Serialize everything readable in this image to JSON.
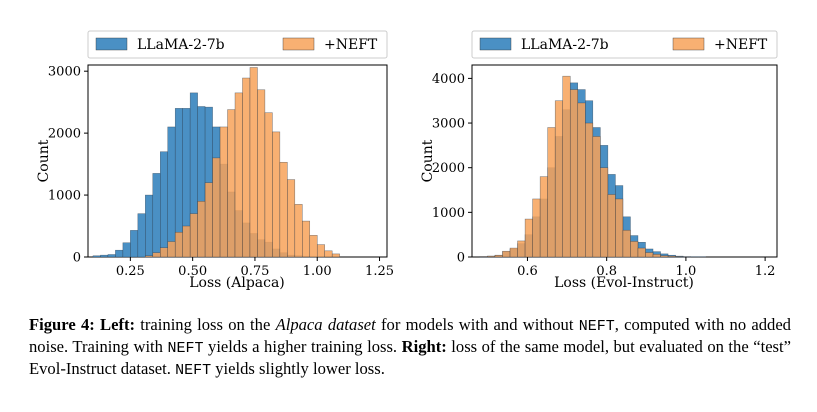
{
  "chart_data": [
    {
      "type": "histogram",
      "xlabel": "Loss (Alpaca)",
      "ylabel": "Count",
      "xlim": [
        0.08,
        1.28
      ],
      "ylim": [
        0,
        3100
      ],
      "xticks": [
        0.25,
        0.5,
        0.75,
        1.0,
        1.25
      ],
      "xtick_labels": [
        "0.25",
        "0.50",
        "0.75",
        "1.00",
        "1.25"
      ],
      "yticks": [
        0,
        1000,
        2000,
        3000
      ],
      "ytick_labels": [
        "0",
        "1000",
        "2000",
        "3000"
      ],
      "legend_position": "top",
      "bin_start": 0.1,
      "bin_width": 0.03,
      "series": [
        {
          "name": "LLaMA-2-7b",
          "color": "#4a90c4",
          "values": [
            20,
            30,
            40,
            110,
            230,
            430,
            700,
            1000,
            1350,
            1700,
            2100,
            2400,
            2400,
            2650,
            2430,
            2420,
            2100,
            1500,
            1050,
            750,
            550,
            380,
            280,
            240,
            130,
            70,
            30,
            20,
            10,
            5,
            5,
            0,
            0,
            0,
            0,
            0,
            0,
            0,
            0,
            0
          ]
        },
        {
          "name": "+NEFT",
          "color": "#f7a259",
          "values": [
            0,
            0,
            0,
            0,
            0,
            0,
            0,
            20,
            70,
            150,
            250,
            400,
            500,
            700,
            900,
            1200,
            1600,
            2100,
            2380,
            2650,
            2890,
            3060,
            2700,
            2330,
            2020,
            1530,
            1250,
            850,
            580,
            350,
            200,
            100,
            50,
            0,
            0,
            0,
            0,
            0,
            0,
            0
          ]
        }
      ]
    },
    {
      "type": "histogram",
      "xlabel": "Loss (Evol-Instruct)",
      "ylabel": "Count",
      "xlim": [
        0.46,
        1.23
      ],
      "ylim": [
        0,
        4300
      ],
      "xticks": [
        0.6,
        0.8,
        1.0,
        1.2
      ],
      "xtick_labels": [
        "0.6",
        "0.8",
        "1.0",
        "1.2"
      ],
      "yticks": [
        0,
        1000,
        2000,
        3000,
        4000
      ],
      "ytick_labels": [
        "0",
        "1000",
        "2000",
        "3000",
        "4000"
      ],
      "legend_position": "top",
      "bin_start": 0.48,
      "bin_width": 0.019,
      "series": [
        {
          "name": "LLaMA-2-7b",
          "color": "#4a90c4",
          "values": [
            10,
            20,
            40,
            120,
            180,
            300,
            500,
            900,
            1300,
            2000,
            2700,
            3300,
            3900,
            3750,
            3500,
            2900,
            2500,
            1850,
            1600,
            900,
            480,
            330,
            180,
            120,
            70,
            40,
            20,
            10,
            5,
            5,
            0,
            0,
            0,
            0,
            0,
            0,
            0,
            0,
            0,
            0
          ]
        },
        {
          "name": "+NEFT",
          "color": "#f7a259",
          "values": [
            10,
            20,
            40,
            130,
            200,
            360,
            850,
            1300,
            1800,
            2900,
            3500,
            4050,
            3750,
            3450,
            3000,
            2700,
            2000,
            1400,
            1300,
            600,
            350,
            200,
            100,
            60,
            30,
            20,
            10,
            5,
            0,
            0,
            0,
            0,
            0,
            0,
            0,
            0,
            0,
            0,
            0,
            0
          ]
        }
      ]
    }
  ],
  "caption": {
    "figure_label": "Figure 4:",
    "left_label": "Left:",
    "text_1": " training loss on the ",
    "dataset_italic": "Alpaca dataset",
    "text_2": " for models with and without ",
    "neft_1": "NEFT",
    "text_3": ", computed with no added noise. Training with ",
    "neft_2": "NEFT",
    "text_4": " yields a higher training loss. ",
    "right_label": "Right:",
    "text_5": " loss of the same model, but evaluated on the “test” Evol-Instruct dataset. ",
    "neft_3": "NEFT",
    "text_6": " yields slightly lower loss."
  }
}
